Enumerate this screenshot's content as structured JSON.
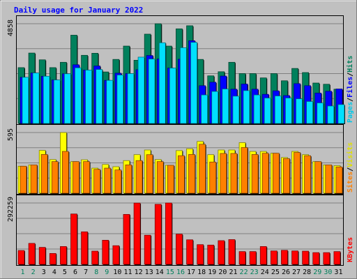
{
  "chart_data": {
    "type": "bar",
    "title": "Daily usage for January 2022",
    "categories": [
      "1",
      "2",
      "3",
      "4",
      "5",
      "6",
      "7",
      "8",
      "9",
      "10",
      "11",
      "12",
      "13",
      "14",
      "15",
      "16",
      "17",
      "18",
      "19",
      "20",
      "21",
      "22",
      "23",
      "24",
      "25",
      "26",
      "27",
      "28",
      "29",
      "30",
      "31"
    ],
    "weekend_days": [
      1,
      2,
      8,
      9,
      15,
      16,
      22,
      23,
      29,
      30
    ],
    "panels": [
      {
        "id": "requests",
        "max_label": "4858",
        "ylim": [
          0,
          4858
        ],
        "side_legend": [
          "Pages",
          "Files",
          "Hits"
        ],
        "series": [
          {
            "name": "Hits",
            "color": "#00805C",
            "values": [
              2720,
              3430,
              3100,
              2720,
              2980,
              4300,
              3320,
              3420,
              2510,
              3120,
              3770,
              3080,
              4350,
              4858,
              3770,
              4610,
              4760,
              3120,
              2320,
              2520,
              2980,
              2430,
              2430,
              2220,
              2430,
              2080,
              2680,
              2480,
              1970,
              1910,
              1670
            ]
          },
          {
            "name": "Files",
            "color": "#0000FF",
            "values": [
              2250,
              2460,
              2300,
              2120,
              2420,
              2860,
              2600,
              2800,
              2100,
              2450,
              2430,
              2620,
              3310,
              3140,
              2700,
              3130,
              4030,
              1840,
              2010,
              2310,
              1670,
              1920,
              1670,
              1420,
              1590,
              1360,
              1940,
              1840,
              1480,
              1570,
              1680
            ]
          },
          {
            "name": "Pages",
            "color": "#00E0FF",
            "values": [
              2250,
              2460,
              2300,
              2120,
              2420,
              2710,
              2600,
              2630,
              2100,
              2360,
              2430,
              3230,
              3140,
              3930,
              2700,
              3690,
              3950,
              1390,
              1560,
              1680,
              1330,
              1600,
              1390,
              1240,
              1340,
              1240,
              1200,
              1070,
              1000,
              850,
              920
            ]
          }
        ]
      },
      {
        "id": "visits",
        "max_label": "595",
        "ylim": [
          0,
          595
        ],
        "side_legend": [
          "Sites",
          "Visits"
        ],
        "series": [
          {
            "name": "Visits",
            "color": "#FFFF00",
            "values": [
              265,
              278,
              420,
              330,
              595,
              310,
              328,
              246,
              282,
              260,
              320,
              378,
              424,
              330,
              274,
              418,
              436,
              508,
              378,
              424,
              424,
              496,
              410,
              410,
              392,
              350,
              410,
              378,
              310,
              278,
              270
            ]
          },
          {
            "name": "Sites",
            "color": "#FF8000",
            "values": [
              265,
              278,
              380,
              310,
              410,
              310,
              310,
              234,
              246,
              228,
              278,
              320,
              378,
              310,
              274,
              368,
              380,
              480,
              306,
              390,
              390,
              448,
              380,
              392,
              392,
              340,
              400,
              368,
              310,
              278,
              258
            ]
          }
        ]
      },
      {
        "id": "kbytes",
        "max_label": "292259",
        "ylim": [
          0,
          292259
        ],
        "side_legend": [
          "KBytes"
        ],
        "series": [
          {
            "name": "KBytes",
            "color": "#FF0000",
            "values": [
              66000,
              100000,
              81000,
              52000,
              85000,
              240000,
              155000,
              63000,
              115000,
              89000,
              238000,
              292000,
              139000,
              286000,
              292259,
              144000,
              117000,
              94000,
              92000,
              113000,
              118000,
              61000,
              61000,
              85000,
              64000,
              67000,
              64000,
              63000,
              56000,
              56000,
              61000
            ]
          }
        ]
      }
    ]
  },
  "colors": {
    "background": "#C0C0C0",
    "plot_background": "#C0C0C0",
    "grid": "#808080",
    "title": "#0000FF",
    "weekday_label": "#000000",
    "weekend_label": "#00805C"
  }
}
